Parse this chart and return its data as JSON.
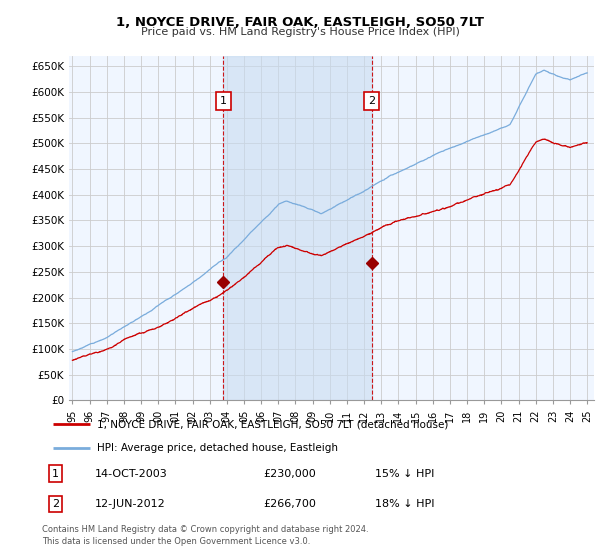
{
  "title": "1, NOYCE DRIVE, FAIR OAK, EASTLEIGH, SO50 7LT",
  "subtitle": "Price paid vs. HM Land Registry's House Price Index (HPI)",
  "ylabel_ticks": [
    "£0",
    "£50K",
    "£100K",
    "£150K",
    "£200K",
    "£250K",
    "£300K",
    "£350K",
    "£400K",
    "£450K",
    "£500K",
    "£550K",
    "£600K",
    "£650K"
  ],
  "ytick_values": [
    0,
    50000,
    100000,
    150000,
    200000,
    250000,
    300000,
    350000,
    400000,
    450000,
    500000,
    550000,
    600000,
    650000
  ],
  "ylim": [
    0,
    670000
  ],
  "xlim_start": 1994.8,
  "xlim_end": 2025.4,
  "purchase1_x": 2003.79,
  "purchase1_y": 230000,
  "purchase1_label": "1",
  "purchase1_date": "14-OCT-2003",
  "purchase1_price": "£230,000",
  "purchase1_hpi": "15% ↓ HPI",
  "purchase2_x": 2012.45,
  "purchase2_y": 266700,
  "purchase2_label": "2",
  "purchase2_date": "12-JUN-2012",
  "purchase2_price": "£266,700",
  "purchase2_hpi": "18% ↓ HPI",
  "line_color_property": "#cc0000",
  "line_color_hpi": "#7aacdc",
  "marker_color_property": "#990000",
  "vline_color": "#cc0000",
  "grid_color": "#cccccc",
  "background_color": "#ddeeff",
  "shade_color": "#ddeeff",
  "legend_label_property": "1, NOYCE DRIVE, FAIR OAK, EASTLEIGH, SO50 7LT (detached house)",
  "legend_label_hpi": "HPI: Average price, detached house, Eastleigh",
  "footer": "Contains HM Land Registry data © Crown copyright and database right 2024.\nThis data is licensed under the Open Government Licence v3.0."
}
